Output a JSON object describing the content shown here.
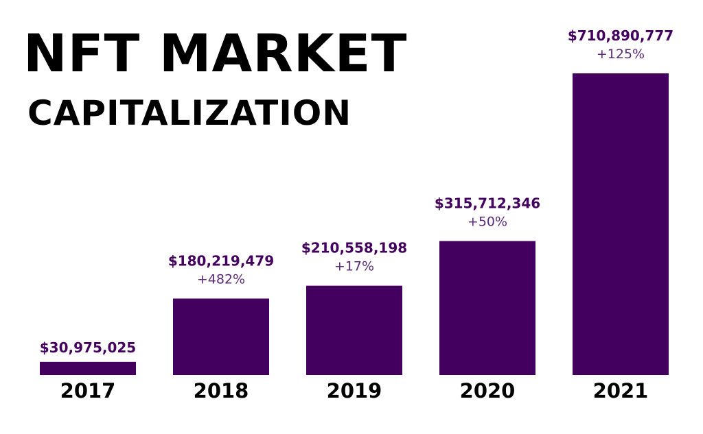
{
  "chart_data": {
    "type": "bar",
    "title_line1": "NFT MARKET",
    "title_line2": "CAPITALIZATION",
    "categories": [
      "2017",
      "2018",
      "2019",
      "2020",
      "2021"
    ],
    "values": [
      30975025,
      180219479,
      210558198,
      315712346,
      710890777
    ],
    "value_labels": [
      "$30,975,025",
      "$180,219,479",
      "$210,558,198",
      "$315,712,346",
      "$710,890,777"
    ],
    "change_labels": [
      "",
      "+482%",
      "+17%",
      "+50%",
      "+125%"
    ],
    "ylim": [
      0,
      710890777
    ],
    "grid": false,
    "legend": "none",
    "colors": {
      "bar": "#43005f",
      "value_text": "#43005f",
      "change_text": "#5a2a78"
    }
  }
}
